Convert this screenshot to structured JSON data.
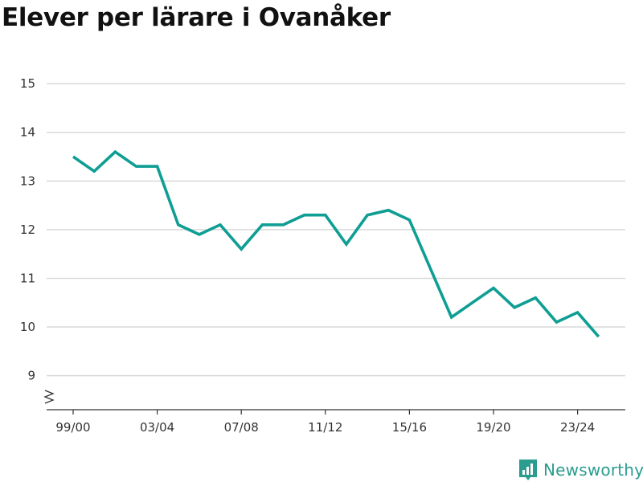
{
  "colors": {
    "line": "#0f9e94",
    "grid": "#d9d9d9",
    "axis": "#333333",
    "brand": "#2a9d8f"
  },
  "brand": {
    "name": "Newsworthy",
    "icon": "newsworthy-logo-icon"
  },
  "chart_data": {
    "type": "line",
    "title": "Elever per lärare i Ovanåker",
    "xlabel": "",
    "ylabel": "",
    "ylim": [
      8.3,
      15.3
    ],
    "y_ticks": [
      9,
      10,
      11,
      12,
      13,
      14,
      15
    ],
    "y_tick_labels": [
      "9",
      "10",
      "11",
      "12",
      "13",
      "14",
      "15"
    ],
    "y_axis_break": true,
    "grid": true,
    "legend": "none",
    "x": [
      "99/00",
      "00/01",
      "01/02",
      "02/03",
      "03/04",
      "04/05",
      "05/06",
      "06/07",
      "07/08",
      "08/09",
      "09/10",
      "10/11",
      "11/12",
      "12/13",
      "13/14",
      "14/15",
      "15/16",
      "16/17",
      "17/18",
      "18/19",
      "19/20",
      "20/21",
      "21/22",
      "22/23",
      "23/24",
      "24/25"
    ],
    "x_tick_labels": [
      "99/00",
      "03/04",
      "07/08",
      "11/12",
      "15/16",
      "19/20",
      "23/24"
    ],
    "series": [
      {
        "values": [
          13.5,
          13.2,
          13.6,
          13.3,
          13.3,
          12.1,
          11.9,
          12.1,
          11.6,
          12.1,
          12.1,
          12.3,
          12.3,
          11.7,
          12.3,
          12.4,
          12.2,
          11.2,
          10.2,
          10.5,
          10.8,
          10.4,
          10.6,
          10.1,
          10.3,
          9.8
        ]
      }
    ]
  }
}
